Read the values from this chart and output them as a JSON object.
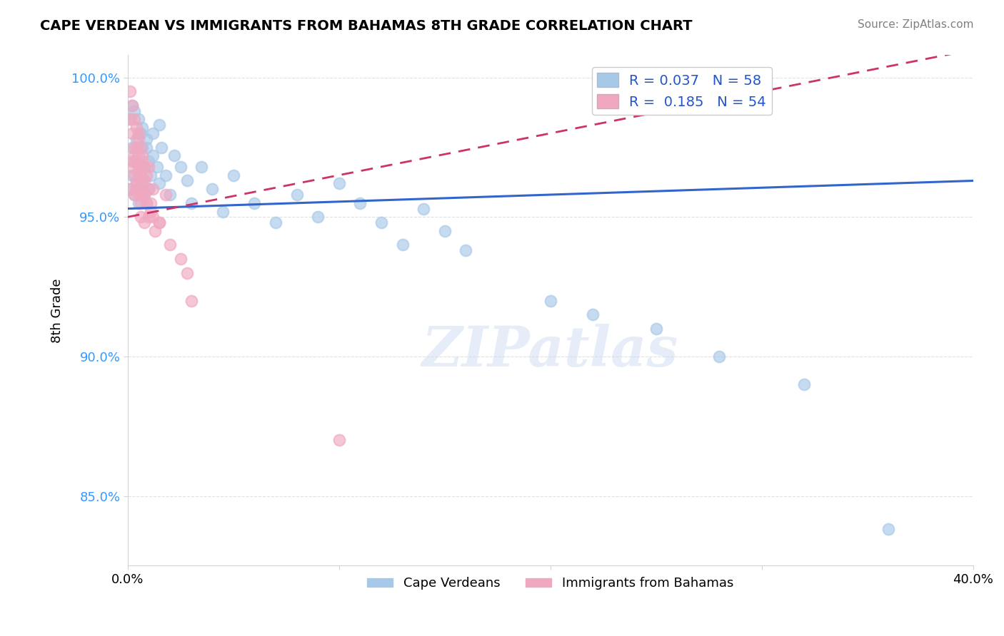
{
  "title": "CAPE VERDEAN VS IMMIGRANTS FROM BAHAMAS 8TH GRADE CORRELATION CHART",
  "source_text": "Source: ZipAtlas.com",
  "xlabel": "",
  "ylabel": "8th Grade",
  "xlim": [
    0.0,
    0.4
  ],
  "ylim": [
    0.825,
    1.008
  ],
  "xticks": [
    0.0,
    0.1,
    0.2,
    0.3,
    0.4
  ],
  "xtick_labels": [
    "0.0%",
    "",
    "",
    "",
    "40.0%"
  ],
  "yticks": [
    0.85,
    0.9,
    0.95,
    1.0
  ],
  "ytick_labels": [
    "85.0%",
    "90.0%",
    "95.0%",
    "100.0%"
  ],
  "blue_R": 0.037,
  "blue_N": 58,
  "pink_R": 0.185,
  "pink_N": 54,
  "blue_color": "#A8C8E8",
  "pink_color": "#F0A8C0",
  "blue_line_color": "#3366CC",
  "pink_line_color": "#CC3366",
  "legend_label_blue": "Cape Verdeans",
  "legend_label_pink": "Immigrants from Bahamas",
  "watermark": "ZIPatlas",
  "blue_x": [
    0.001,
    0.002,
    0.002,
    0.003,
    0.003,
    0.004,
    0.004,
    0.005,
    0.005,
    0.006,
    0.006,
    0.007,
    0.007,
    0.008,
    0.008,
    0.009,
    0.01,
    0.01,
    0.011,
    0.012,
    0.014,
    0.015,
    0.016,
    0.018,
    0.02,
    0.022,
    0.025,
    0.028,
    0.03,
    0.035,
    0.04,
    0.045,
    0.05,
    0.06,
    0.07,
    0.08,
    0.09,
    0.1,
    0.11,
    0.12,
    0.13,
    0.14,
    0.15,
    0.16,
    0.2,
    0.22,
    0.25,
    0.28,
    0.32,
    0.001,
    0.002,
    0.003,
    0.005,
    0.007,
    0.009,
    0.012,
    0.015,
    0.36
  ],
  "blue_y": [
    0.96,
    0.965,
    0.975,
    0.958,
    0.97,
    0.963,
    0.978,
    0.955,
    0.972,
    0.968,
    0.98,
    0.962,
    0.975,
    0.958,
    0.968,
    0.975,
    0.97,
    0.96,
    0.965,
    0.972,
    0.968,
    0.962,
    0.975,
    0.965,
    0.958,
    0.972,
    0.968,
    0.963,
    0.955,
    0.968,
    0.96,
    0.952,
    0.965,
    0.955,
    0.948,
    0.958,
    0.95,
    0.962,
    0.955,
    0.948,
    0.94,
    0.953,
    0.945,
    0.938,
    0.92,
    0.915,
    0.91,
    0.9,
    0.89,
    0.985,
    0.99,
    0.988,
    0.985,
    0.982,
    0.978,
    0.98,
    0.983,
    0.838
  ],
  "pink_x": [
    0.001,
    0.001,
    0.002,
    0.002,
    0.002,
    0.003,
    0.003,
    0.003,
    0.004,
    0.004,
    0.004,
    0.005,
    0.005,
    0.005,
    0.006,
    0.006,
    0.006,
    0.007,
    0.007,
    0.008,
    0.008,
    0.008,
    0.009,
    0.009,
    0.01,
    0.01,
    0.011,
    0.012,
    0.013,
    0.015,
    0.001,
    0.002,
    0.003,
    0.003,
    0.004,
    0.004,
    0.005,
    0.005,
    0.006,
    0.006,
    0.007,
    0.007,
    0.008,
    0.009,
    0.01,
    0.011,
    0.012,
    0.015,
    0.018,
    0.02,
    0.025,
    0.028,
    0.03,
    0.1
  ],
  "pink_y": [
    0.995,
    0.985,
    0.99,
    0.98,
    0.97,
    0.985,
    0.975,
    0.965,
    0.982,
    0.97,
    0.96,
    0.978,
    0.968,
    0.958,
    0.975,
    0.965,
    0.955,
    0.97,
    0.96,
    0.968,
    0.958,
    0.948,
    0.965,
    0.955,
    0.96,
    0.95,
    0.955,
    0.95,
    0.945,
    0.948,
    0.96,
    0.968,
    0.972,
    0.958,
    0.975,
    0.962,
    0.98,
    0.966,
    0.962,
    0.95,
    0.972,
    0.958,
    0.963,
    0.955,
    0.968,
    0.952,
    0.96,
    0.948,
    0.958,
    0.94,
    0.935,
    0.93,
    0.92,
    0.87
  ]
}
